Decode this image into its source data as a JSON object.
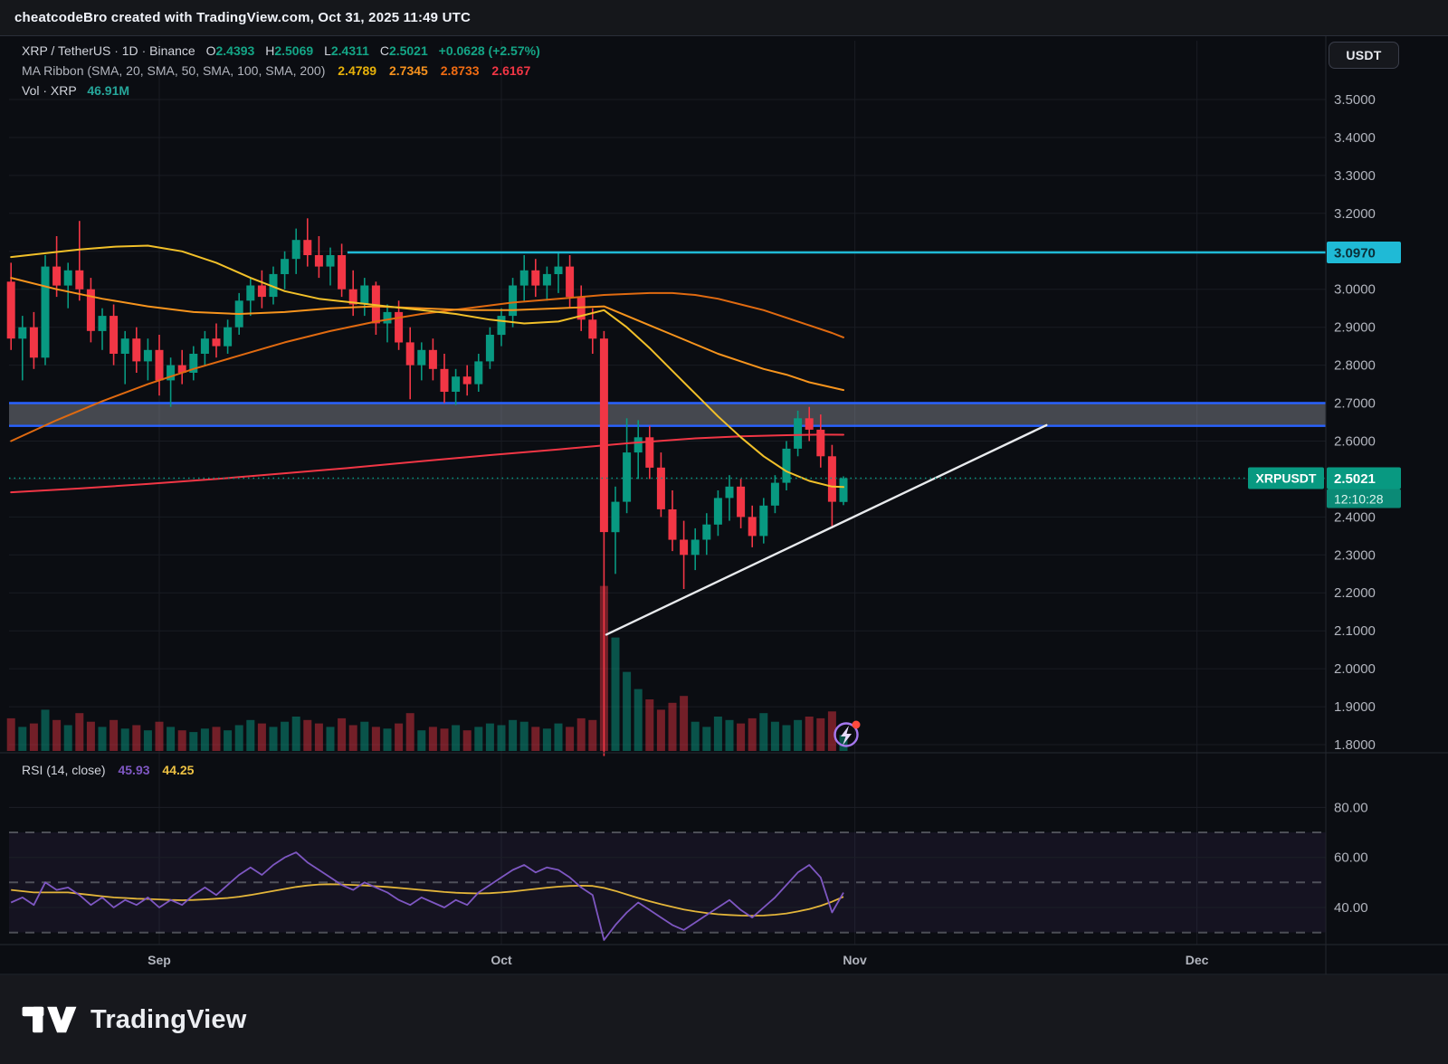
{
  "topbar": {
    "title": "cheatcodeBro created with TradingView.com, Oct 31, 2025 11:49 UTC"
  },
  "currency_button": "USDT",
  "legend": {
    "symbol": "XRP / TetherUS",
    "sep": "·",
    "interval": "1D",
    "exchange": "Binance",
    "ohlc": {
      "o_label": "O",
      "o": "2.4393",
      "h_label": "H",
      "h": "2.5069",
      "l_label": "L",
      "l": "2.4311",
      "c_label": "C",
      "c": "2.5021",
      "change": "+0.0628 (+2.57%)"
    },
    "ma_ribbon": {
      "label": "MA Ribbon (SMA, 20, SMA, 50, SMA, 100, SMA, 200)",
      "values": [
        {
          "v": "2.4789",
          "color": "#e7b10a"
        },
        {
          "v": "2.7345",
          "color": "#f7921e"
        },
        {
          "v": "2.8733",
          "color": "#ef6b12"
        },
        {
          "v": "2.6167",
          "color": "#f23645"
        }
      ]
    },
    "volume": {
      "label": "Vol · XRP",
      "value": "46.91M",
      "color": "#26a69a"
    }
  },
  "rsi_legend": {
    "label": "RSI (14, close)",
    "rsi_value": "45.93",
    "ma_value": "44.25"
  },
  "price_axis": {
    "ticks": [
      "3.5000",
      "3.4000",
      "3.3000",
      "3.2000",
      "3.0000",
      "2.9000",
      "2.8000",
      "2.7000",
      "2.6000",
      "2.4000",
      "2.3000",
      "2.2000",
      "2.1000",
      "2.0000",
      "1.9000",
      "1.8000"
    ],
    "resistance_label": "3.0970",
    "price_label": "2.5021",
    "countdown": "12:10:28",
    "symbol_tag": "XRPUSDT"
  },
  "rsi_axis": {
    "ticks": [
      "80.00",
      "60.00",
      "40.00"
    ]
  },
  "logo_text": "TradingView",
  "chart_data": {
    "type": "candlestick",
    "title": "XRP / TetherUS · 1D · Binance",
    "x_unit": "daily candles, index 0 = Aug 19 2025, index 73 = Oct 31 2025",
    "price_range_shown": [
      1.8,
      3.5
    ],
    "months": [
      {
        "label": "Sep",
        "i": 13
      },
      {
        "label": "Oct",
        "i": 43
      },
      {
        "label": "Nov",
        "i": 74
      },
      {
        "label": "Dec",
        "i": 104
      }
    ],
    "candles_ohlc": [
      [
        3.02,
        3.07,
        2.84,
        2.87
      ],
      [
        2.87,
        2.93,
        2.76,
        2.9
      ],
      [
        2.9,
        2.94,
        2.79,
        2.82
      ],
      [
        2.82,
        3.09,
        2.8,
        3.06
      ],
      [
        3.06,
        3.14,
        2.98,
        3.01
      ],
      [
        3.01,
        3.07,
        2.95,
        3.05
      ],
      [
        3.05,
        3.18,
        2.97,
        3.0
      ],
      [
        3.0,
        3.03,
        2.86,
        2.89
      ],
      [
        2.89,
        2.95,
        2.84,
        2.93
      ],
      [
        2.93,
        2.96,
        2.8,
        2.83
      ],
      [
        2.83,
        2.89,
        2.75,
        2.87
      ],
      [
        2.87,
        2.9,
        2.78,
        2.81
      ],
      [
        2.81,
        2.87,
        2.76,
        2.84
      ],
      [
        2.84,
        2.88,
        2.72,
        2.76
      ],
      [
        2.76,
        2.82,
        2.69,
        2.8
      ],
      [
        2.8,
        2.84,
        2.75,
        2.78
      ],
      [
        2.78,
        2.85,
        2.76,
        2.83
      ],
      [
        2.83,
        2.89,
        2.8,
        2.87
      ],
      [
        2.87,
        2.91,
        2.82,
        2.85
      ],
      [
        2.85,
        2.92,
        2.83,
        2.9
      ],
      [
        2.9,
        2.99,
        2.88,
        2.97
      ],
      [
        2.97,
        3.03,
        2.93,
        3.01
      ],
      [
        3.01,
        3.05,
        2.95,
        2.98
      ],
      [
        2.98,
        3.06,
        2.96,
        3.04
      ],
      [
        3.04,
        3.1,
        3.0,
        3.08
      ],
      [
        3.08,
        3.16,
        3.04,
        3.13
      ],
      [
        3.13,
        3.187,
        3.06,
        3.09
      ],
      [
        3.09,
        3.14,
        3.03,
        3.06
      ],
      [
        3.06,
        3.11,
        3.01,
        3.09
      ],
      [
        3.09,
        3.12,
        2.98,
        3.0
      ],
      [
        3.0,
        3.05,
        2.93,
        2.96
      ],
      [
        2.96,
        3.03,
        2.93,
        3.01
      ],
      [
        3.01,
        3.02,
        2.88,
        2.91
      ],
      [
        2.91,
        2.96,
        2.86,
        2.94
      ],
      [
        2.94,
        2.97,
        2.84,
        2.86
      ],
      [
        2.86,
        2.9,
        2.71,
        2.8
      ],
      [
        2.8,
        2.86,
        2.76,
        2.84
      ],
      [
        2.84,
        2.87,
        2.76,
        2.79
      ],
      [
        2.79,
        2.83,
        2.7,
        2.73
      ],
      [
        2.73,
        2.79,
        2.695,
        2.77
      ],
      [
        2.77,
        2.8,
        2.72,
        2.75
      ],
      [
        2.75,
        2.83,
        2.73,
        2.81
      ],
      [
        2.81,
        2.9,
        2.79,
        2.88
      ],
      [
        2.88,
        2.95,
        2.85,
        2.93
      ],
      [
        2.93,
        3.03,
        2.9,
        3.01
      ],
      [
        3.01,
        3.09,
        2.97,
        3.05
      ],
      [
        3.05,
        3.08,
        2.98,
        3.01
      ],
      [
        3.01,
        3.06,
        2.97,
        3.04
      ],
      [
        3.04,
        3.095,
        2.99,
        3.06
      ],
      [
        3.06,
        3.09,
        2.95,
        2.98
      ],
      [
        2.98,
        3.01,
        2.89,
        2.92
      ],
      [
        2.92,
        2.95,
        2.83,
        2.87
      ],
      [
        2.87,
        2.89,
        1.77,
        2.36
      ],
      [
        2.36,
        2.48,
        2.25,
        2.44
      ],
      [
        2.44,
        2.66,
        2.41,
        2.57
      ],
      [
        2.57,
        2.655,
        2.5,
        2.61
      ],
      [
        2.61,
        2.64,
        2.5,
        2.53
      ],
      [
        2.53,
        2.57,
        2.4,
        2.42
      ],
      [
        2.42,
        2.47,
        2.31,
        2.34
      ],
      [
        2.34,
        2.39,
        2.21,
        2.3
      ],
      [
        2.3,
        2.37,
        2.26,
        2.34
      ],
      [
        2.34,
        2.41,
        2.3,
        2.38
      ],
      [
        2.38,
        2.47,
        2.35,
        2.45
      ],
      [
        2.45,
        2.51,
        2.39,
        2.48
      ],
      [
        2.48,
        2.5,
        2.37,
        2.4
      ],
      [
        2.4,
        2.43,
        2.32,
        2.35
      ],
      [
        2.35,
        2.45,
        2.33,
        2.43
      ],
      [
        2.43,
        2.51,
        2.41,
        2.49
      ],
      [
        2.49,
        2.6,
        2.47,
        2.58
      ],
      [
        2.58,
        2.68,
        2.56,
        2.66
      ],
      [
        2.66,
        2.69,
        2.6,
        2.63
      ],
      [
        2.63,
        2.67,
        2.53,
        2.56
      ],
      [
        2.56,
        2.59,
        2.37,
        2.44
      ],
      [
        2.4393,
        2.5069,
        2.4311,
        2.5021
      ]
    ],
    "volume_m": [
      95,
      70,
      80,
      120,
      90,
      75,
      110,
      85,
      70,
      90,
      65,
      75,
      60,
      85,
      70,
      60,
      55,
      65,
      70,
      60,
      75,
      90,
      80,
      70,
      85,
      100,
      90,
      80,
      70,
      95,
      75,
      85,
      70,
      65,
      80,
      110,
      60,
      70,
      65,
      75,
      60,
      70,
      80,
      75,
      90,
      85,
      70,
      65,
      80,
      70,
      95,
      90,
      480,
      330,
      230,
      180,
      150,
      120,
      140,
      160,
      85,
      70,
      100,
      90,
      80,
      95,
      110,
      85,
      75,
      90,
      100,
      95,
      115,
      46.91
    ],
    "last_volume_label": "46.91M",
    "sma20": [
      [
        0,
        3.085
      ],
      [
        3,
        3.095
      ],
      [
        6,
        3.105
      ],
      [
        9,
        3.112
      ],
      [
        12,
        3.115
      ],
      [
        15,
        3.1
      ],
      [
        18,
        3.07
      ],
      [
        21,
        3.03
      ],
      [
        24,
        2.995
      ],
      [
        27,
        2.975
      ],
      [
        30,
        2.965
      ],
      [
        33,
        2.955
      ],
      [
        36,
        2.945
      ],
      [
        39,
        2.935
      ],
      [
        42,
        2.92
      ],
      [
        45,
        2.91
      ],
      [
        48,
        2.915
      ],
      [
        50,
        2.93
      ],
      [
        52,
        2.945
      ],
      [
        54,
        2.9
      ],
      [
        56,
        2.845
      ],
      [
        58,
        2.785
      ],
      [
        60,
        2.725
      ],
      [
        62,
        2.665
      ],
      [
        64,
        2.61
      ],
      [
        66,
        2.56
      ],
      [
        68,
        2.52
      ],
      [
        70,
        2.495
      ],
      [
        72,
        2.48
      ],
      [
        73,
        2.4789
      ]
    ],
    "sma50": [
      [
        0,
        3.03
      ],
      [
        4,
        3.0
      ],
      [
        8,
        2.975
      ],
      [
        12,
        2.955
      ],
      [
        16,
        2.94
      ],
      [
        20,
        2.935
      ],
      [
        24,
        2.94
      ],
      [
        28,
        2.95
      ],
      [
        32,
        2.955
      ],
      [
        36,
        2.95
      ],
      [
        40,
        2.945
      ],
      [
        44,
        2.945
      ],
      [
        48,
        2.95
      ],
      [
        52,
        2.955
      ],
      [
        54,
        2.93
      ],
      [
        56,
        2.905
      ],
      [
        58,
        2.88
      ],
      [
        60,
        2.855
      ],
      [
        62,
        2.83
      ],
      [
        64,
        2.81
      ],
      [
        66,
        2.79
      ],
      [
        68,
        2.775
      ],
      [
        70,
        2.755
      ],
      [
        73,
        2.7345
      ]
    ],
    "sma100": [
      [
        0,
        2.6
      ],
      [
        4,
        2.655
      ],
      [
        8,
        2.705
      ],
      [
        12,
        2.75
      ],
      [
        16,
        2.79
      ],
      [
        20,
        2.825
      ],
      [
        24,
        2.86
      ],
      [
        28,
        2.89
      ],
      [
        32,
        2.915
      ],
      [
        36,
        2.935
      ],
      [
        40,
        2.95
      ],
      [
        44,
        2.965
      ],
      [
        48,
        2.975
      ],
      [
        52,
        2.985
      ],
      [
        56,
        2.99
      ],
      [
        58,
        2.99
      ],
      [
        60,
        2.985
      ],
      [
        62,
        2.975
      ],
      [
        64,
        2.96
      ],
      [
        66,
        2.945
      ],
      [
        68,
        2.925
      ],
      [
        70,
        2.905
      ],
      [
        72,
        2.885
      ],
      [
        73,
        2.8733
      ]
    ],
    "sma200": [
      [
        0,
        2.465
      ],
      [
        6,
        2.475
      ],
      [
        12,
        2.487
      ],
      [
        18,
        2.5
      ],
      [
        24,
        2.515
      ],
      [
        30,
        2.53
      ],
      [
        36,
        2.547
      ],
      [
        42,
        2.563
      ],
      [
        48,
        2.578
      ],
      [
        54,
        2.594
      ],
      [
        60,
        2.607
      ],
      [
        64,
        2.6125
      ],
      [
        68,
        2.6155
      ],
      [
        71,
        2.617
      ],
      [
        73,
        2.6167
      ]
    ],
    "rsi": [
      42,
      44,
      41,
      50,
      47,
      48,
      45,
      41,
      44,
      40,
      43,
      41,
      44,
      40,
      43,
      41,
      45,
      48,
      45,
      49,
      53,
      56,
      53,
      57,
      60,
      62,
      58,
      55,
      52,
      49,
      47,
      50,
      48,
      46,
      43,
      41,
      44,
      42,
      40,
      43,
      41,
      46,
      49,
      52,
      55,
      57,
      54,
      56,
      55,
      52,
      48,
      45,
      27,
      33,
      38,
      42,
      39,
      36,
      33,
      31,
      34,
      37,
      40,
      43,
      39,
      36,
      40,
      44,
      49,
      54,
      57,
      52,
      38,
      45.93
    ],
    "rsi_ma": [
      47,
      46.5,
      46,
      46,
      46,
      46,
      45.5,
      45,
      44.5,
      44,
      43.8,
      43.5,
      43.4,
      43.2,
      43,
      42.9,
      43,
      43.2,
      43.5,
      43.8,
      44.3,
      45,
      45.8,
      46.6,
      47.4,
      48.2,
      48.8,
      49.2,
      49.3,
      49.2,
      49,
      48.8,
      48.5,
      48.2,
      47.8,
      47.4,
      47,
      46.6,
      46.2,
      45.9,
      45.7,
      45.6,
      45.7,
      46,
      46.4,
      46.9,
      47.4,
      47.9,
      48.3,
      48.6,
      48.7,
      48.6,
      47.8,
      46.6,
      45.2,
      43.8,
      42.5,
      41.3,
      40.2,
      39.2,
      38.4,
      37.8,
      37.3,
      37,
      36.8,
      36.7,
      36.8,
      37.1,
      37.6,
      38.4,
      39.4,
      40.7,
      42.3,
      44.25
    ],
    "rsi_guides": {
      "solid": [
        80,
        60,
        40
      ],
      "dashed": [
        70,
        50,
        30
      ],
      "band": [
        30,
        70
      ]
    },
    "levels": {
      "resistance_price": 3.097,
      "resistance_start_i": 29.5,
      "supply_zone_top": 2.7,
      "supply_zone_bottom": 2.64,
      "current_price": 2.5021
    },
    "trendline": {
      "i1": 52.2,
      "p1": 2.09,
      "i2": 90.8,
      "p2": 2.642
    },
    "colors": {
      "up": "#089981",
      "down": "#f23645",
      "vol_up": "rgba(8,153,129,0.5)",
      "vol_down": "rgba(242,54,69,0.45)",
      "sma20": "#f2c029",
      "sma50": "#f7941d",
      "sma100": "#e06a10",
      "sma200": "#f23645",
      "resistance": "#1fbad6",
      "zone_border": "#2962ff",
      "zone_fill": "rgba(150,155,165,0.42)",
      "trendline": "#e8eaed",
      "rsi": "#7e57c2",
      "rsi_ma": "#e3b53a",
      "price_label_bg": "#089981",
      "axis_text": "#b2b5be"
    }
  }
}
